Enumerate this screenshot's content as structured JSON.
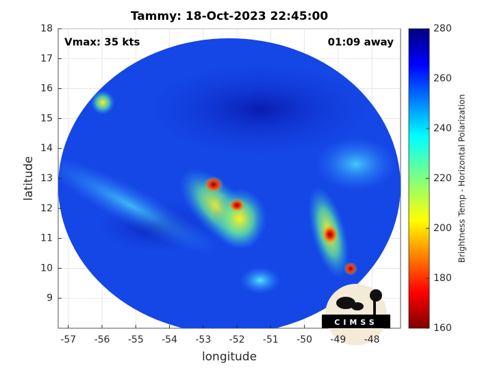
{
  "title": "Tammy: 18-Oct-2023 22:45:00",
  "annotations": {
    "intensity": "Vmax: 35 kts",
    "time_offset": "01:09 away"
  },
  "axes": {
    "xlabel": "longitude",
    "ylabel": "latitude",
    "xlim": [
      -57.3,
      -47.15
    ],
    "ylim": [
      8,
      18
    ],
    "xticks": [
      -57,
      -56,
      -55,
      -54,
      -53,
      -52,
      -51,
      -50,
      -49,
      -48
    ],
    "yticks": [
      9,
      10,
      11,
      12,
      13,
      14,
      15,
      16,
      17,
      18
    ],
    "grid": true
  },
  "colorbar": {
    "label": "Brightness Temp - Horizontal Polarization",
    "lim": [
      160,
      280
    ],
    "ticks": [
      160,
      180,
      200,
      220,
      240,
      260,
      280
    ]
  },
  "logo": {
    "text": "CIMSS"
  }
}
